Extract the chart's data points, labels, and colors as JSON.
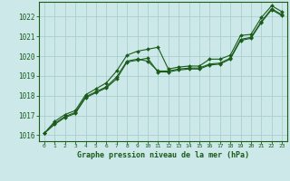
{
  "bg_color": "#cce8e8",
  "grid_color": "#aacece",
  "line_color": "#1a5c1a",
  "marker_color": "#1a5c1a",
  "title": "Graphe pression niveau de la mer (hPa)",
  "title_color": "#1a5c1a",
  "xlim": [
    -0.5,
    23.5
  ],
  "ylim": [
    1015.7,
    1022.75
  ],
  "yticks": [
    1016,
    1017,
    1018,
    1019,
    1020,
    1021,
    1022
  ],
  "xticks": [
    0,
    1,
    2,
    3,
    4,
    5,
    6,
    7,
    8,
    9,
    10,
    11,
    12,
    13,
    14,
    15,
    16,
    17,
    18,
    19,
    20,
    21,
    22,
    23
  ],
  "series1_x": [
    0,
    1,
    2,
    3,
    4,
    5,
    6,
    7,
    8,
    9,
    10,
    11,
    12,
    13,
    14,
    15,
    16,
    17,
    18,
    19,
    20,
    21,
    22,
    23
  ],
  "series1_y": [
    1016.1,
    1016.7,
    1017.05,
    1017.25,
    1018.05,
    1018.35,
    1018.65,
    1019.25,
    1020.05,
    1020.25,
    1020.35,
    1020.45,
    1019.35,
    1019.45,
    1019.5,
    1019.5,
    1019.85,
    1019.85,
    1020.05,
    1021.05,
    1021.1,
    1021.95,
    1022.55,
    1022.25
  ],
  "series2_x": [
    0,
    1,
    2,
    3,
    4,
    5,
    6,
    7,
    8,
    9,
    10,
    11,
    12,
    13,
    14,
    15,
    16,
    17,
    18,
    19,
    20,
    21,
    22,
    23
  ],
  "series2_y": [
    1016.1,
    1016.6,
    1016.95,
    1017.15,
    1017.95,
    1018.2,
    1018.45,
    1018.95,
    1019.75,
    1019.85,
    1019.75,
    1019.25,
    1019.25,
    1019.35,
    1019.4,
    1019.4,
    1019.6,
    1019.65,
    1019.9,
    1020.85,
    1020.95,
    1021.75,
    1022.4,
    1022.1
  ],
  "series3_x": [
    0,
    1,
    2,
    3,
    4,
    5,
    6,
    7,
    8,
    9,
    10,
    11,
    12,
    13,
    14,
    15,
    16,
    17,
    18,
    19,
    20,
    21,
    22,
    23
  ],
  "series3_y": [
    1016.1,
    1016.55,
    1016.9,
    1017.1,
    1017.9,
    1018.15,
    1018.4,
    1018.85,
    1019.7,
    1019.8,
    1019.9,
    1019.2,
    1019.2,
    1019.3,
    1019.35,
    1019.35,
    1019.55,
    1019.6,
    1019.85,
    1020.8,
    1020.9,
    1021.7,
    1022.35,
    1022.05
  ]
}
